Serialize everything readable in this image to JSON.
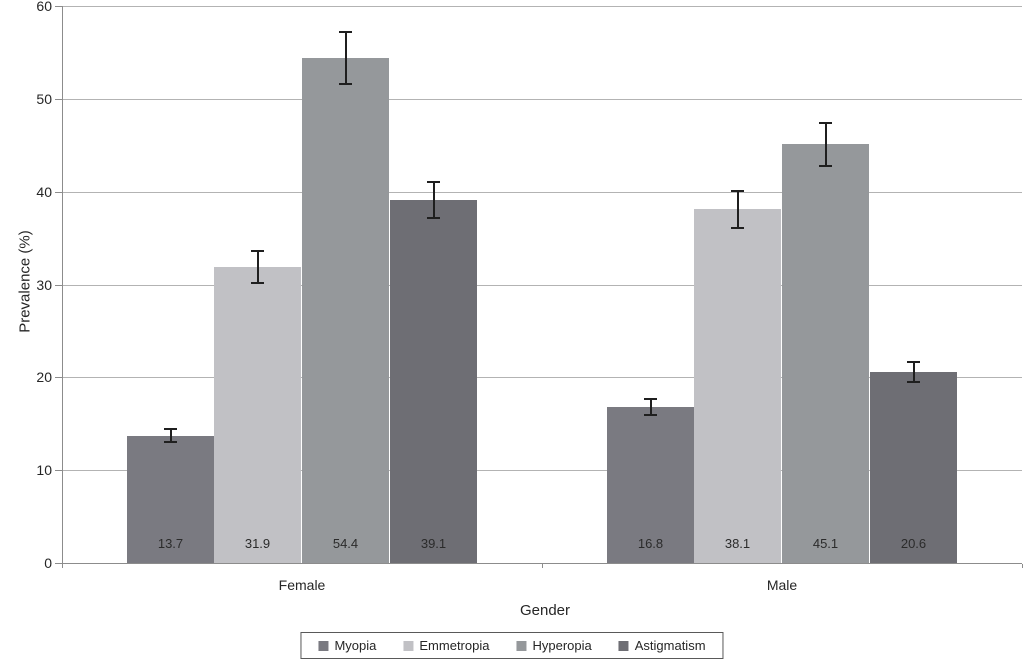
{
  "chart_data": {
    "type": "bar",
    "title": "",
    "xlabel": "Gender",
    "ylabel": "Prevalence (%)",
    "ylim": [
      0,
      60
    ],
    "yticks": [
      0,
      10,
      20,
      30,
      40,
      50,
      60
    ],
    "grid": true,
    "legend_position": "bottom",
    "categories": [
      "Female",
      "Male"
    ],
    "series": [
      {
        "name": "Myopia",
        "color": "#7a7a81",
        "values": [
          13.7,
          16.8
        ],
        "errors": [
          0.7,
          0.9
        ]
      },
      {
        "name": "Emmetropia",
        "color": "#c1c1c5",
        "values": [
          31.9,
          38.1
        ],
        "errors": [
          1.7,
          2.0
        ]
      },
      {
        "name": "Hyperopia",
        "color": "#95989b",
        "values": [
          54.4,
          45.1
        ],
        "errors": [
          2.8,
          2.3
        ]
      },
      {
        "name": "Astigmatism",
        "color": "#6e6e74",
        "values": [
          39.1,
          20.6
        ],
        "errors": [
          1.9,
          1.1
        ]
      }
    ],
    "bar_value_labels": [
      [
        "13.7",
        "31.9",
        "54.4",
        "39.1"
      ],
      [
        "16.8",
        "38.1",
        "45.1",
        "20.6"
      ]
    ],
    "colors": {
      "gridline": "#b3b3b3",
      "axis": "#8c8c8c",
      "error_bar": "#1f1f1f",
      "text": "#262626"
    }
  }
}
